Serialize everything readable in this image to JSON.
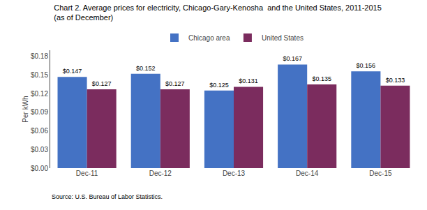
{
  "chart_data": {
    "type": "bar",
    "title": "Chart 2. Average prices for electricity, Chicago-Gary-Kenosha  and the United States, 2011-2015",
    "subtitle": "(as of December)",
    "ylabel": "Per kWh",
    "source": "Source: U.S. Bureau of Labor Statistics.",
    "categories": [
      "Dec-11",
      "Dec-12",
      "Dec-13",
      "Dec-14",
      "Dec-15"
    ],
    "series": [
      {
        "name": "Chicago area",
        "color": "#4472C4",
        "values": [
          0.147,
          0.152,
          0.125,
          0.167,
          0.156
        ],
        "value_labels": [
          "$0.147",
          "$0.152",
          "$0.125",
          "$0.167",
          "$0.156"
        ]
      },
      {
        "name": "United States",
        "color": "#7B2C5E",
        "values": [
          0.127,
          0.127,
          0.131,
          0.135,
          0.133
        ],
        "value_labels": [
          "$0.127",
          "$0.127",
          "$0.131",
          "$0.135",
          "$0.133"
        ]
      }
    ],
    "ylim": [
      0,
      0.19
    ],
    "yticks": [
      {
        "value": 0.0,
        "label": "$0.00"
      },
      {
        "value": 0.03,
        "label": "$0.03"
      },
      {
        "value": 0.06,
        "label": "$0.06"
      },
      {
        "value": 0.09,
        "label": "$0.09"
      },
      {
        "value": 0.12,
        "label": "$0.12"
      },
      {
        "value": 0.15,
        "label": "$0.15"
      },
      {
        "value": 0.18,
        "label": "$0.18"
      }
    ],
    "grid": false,
    "legend": "top",
    "data_labels": true
  }
}
